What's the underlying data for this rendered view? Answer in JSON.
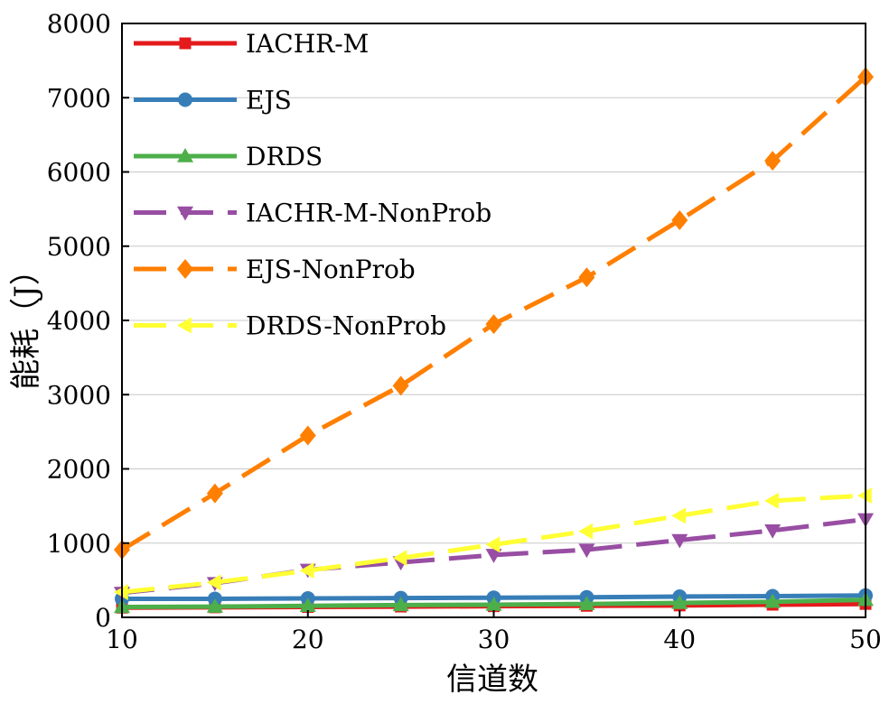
{
  "chart_data": {
    "type": "line",
    "xlabel": "信道数",
    "ylabel": "能耗（J）",
    "xlim": [
      10,
      50
    ],
    "ylim": [
      0,
      8000
    ],
    "xticks": [
      "10",
      "20",
      "30",
      "40",
      "50"
    ],
    "yticks": [
      "0",
      "1000",
      "2000",
      "3000",
      "4000",
      "5000",
      "6000",
      "7000",
      "8000"
    ],
    "grid": "horizontal",
    "legend_position": "top-left",
    "x": [
      10,
      15,
      20,
      25,
      30,
      35,
      40,
      45,
      50
    ],
    "series": [
      {
        "name": "IACHR-M",
        "color": "#e41a1c",
        "dash": "solid",
        "marker": "square",
        "values": [
          130,
          135,
          140,
          145,
          150,
          155,
          160,
          170,
          180
        ]
      },
      {
        "name": "EJS",
        "color": "#377eb8",
        "dash": "solid",
        "marker": "circle",
        "values": [
          250,
          250,
          255,
          260,
          265,
          270,
          280,
          285,
          295
        ]
      },
      {
        "name": "DRDS",
        "color": "#4daf4a",
        "dash": "solid",
        "marker": "triangle-up",
        "values": [
          140,
          145,
          155,
          165,
          170,
          180,
          195,
          210,
          235
        ]
      },
      {
        "name": "IACHR-M-NonProb",
        "color": "#984ea3",
        "dash": "dashed",
        "marker": "triangle-down",
        "values": [
          330,
          460,
          640,
          740,
          840,
          910,
          1040,
          1170,
          1320
        ]
      },
      {
        "name": "EJS-NonProb",
        "color": "#ff7f00",
        "dash": "dashed",
        "marker": "diamond",
        "values": [
          910,
          1670,
          2450,
          3120,
          3950,
          4580,
          5350,
          6150,
          7280
        ]
      },
      {
        "name": "DRDS-NonProb",
        "color": "#ffff33",
        "dash": "dashed",
        "marker": "triangle-left",
        "values": [
          340,
          470,
          630,
          800,
          980,
          1160,
          1370,
          1570,
          1640
        ]
      }
    ]
  }
}
